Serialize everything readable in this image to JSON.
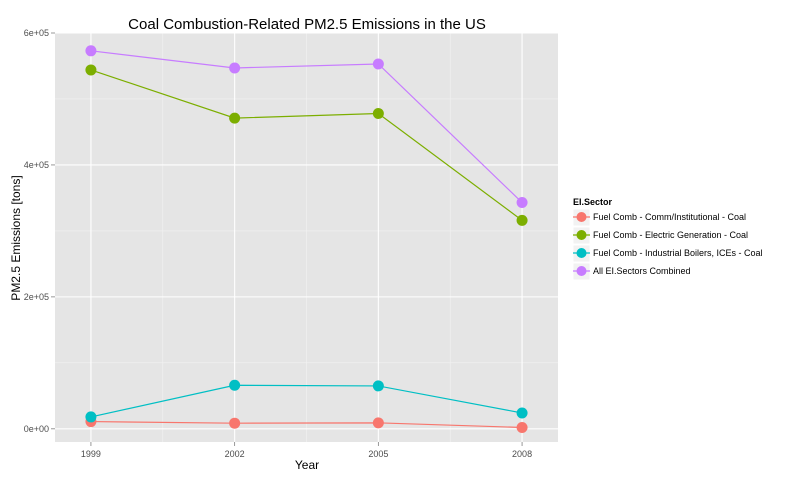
{
  "chart_data": {
    "type": "line",
    "title": "Coal Combustion-Related PM2.5 Emissions in the US",
    "xlabel": "Year",
    "ylabel": "PM2.5 Emissions [tons]",
    "x": [
      1999,
      2002,
      2005,
      2008
    ],
    "xticks": [
      "1999",
      "2002",
      "2005",
      "2008"
    ],
    "ylim": [
      -20000,
      600000
    ],
    "yticks": [
      {
        "value": 0,
        "label": "0e+00"
      },
      {
        "value": 200000,
        "label": "2e+05"
      },
      {
        "value": 400000,
        "label": "4e+05"
      },
      {
        "value": 600000,
        "label": "6e+05"
      }
    ],
    "grid": true,
    "legend_title": "EI.Sector",
    "legend_position": "right",
    "series": [
      {
        "name": "Fuel Comb - Comm/Institutional - Coal",
        "color": "#F8766D",
        "values": [
          11000,
          8500,
          9000,
          2000
        ]
      },
      {
        "name": "Fuel Comb - Electric Generation - Coal",
        "color": "#7CAE00",
        "values": [
          544000,
          471000,
          478000,
          316000
        ]
      },
      {
        "name": "Fuel Comb - Industrial Boilers, ICEs - Coal",
        "color": "#00BFC4",
        "values": [
          18000,
          66000,
          65000,
          24000
        ]
      },
      {
        "name": "All EI.Sectors Combined",
        "color": "#C77CFF",
        "values": [
          573000,
          547000,
          553000,
          343000
        ]
      }
    ]
  }
}
